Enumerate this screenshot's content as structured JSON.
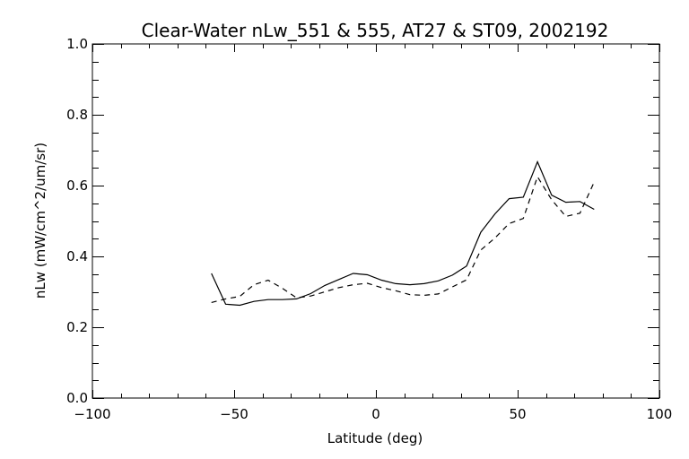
{
  "chart_data": {
    "type": "line",
    "title": "Clear-Water nLw_551 & 555, AT27 & ST09, 2002192",
    "xlabel": "Latitude (deg)",
    "ylabel": "nLw (mW/cm^2/um/sr)",
    "xlim": [
      -100,
      100
    ],
    "ylim": [
      0.0,
      1.0
    ],
    "x_major_ticks": [
      -100,
      -50,
      0,
      50,
      100
    ],
    "x_tick_labels": [
      "−100",
      "−50",
      "0",
      "50",
      "100"
    ],
    "x_minor_step": 10,
    "y_major_ticks": [
      0.0,
      0.2,
      0.4,
      0.6,
      0.8,
      1.0
    ],
    "y_tick_labels": [
      "0.0",
      "0.2",
      "0.4",
      "0.6",
      "0.8",
      "1.0"
    ],
    "y_minor_step": 0.05,
    "grid": false,
    "series": [
      {
        "style": "solid",
        "x": [
          -58,
          -53,
          -48,
          -43,
          -38,
          -33,
          -28,
          -23,
          -18,
          -13,
          -8,
          -3,
          2,
          7,
          12,
          17,
          22,
          27,
          32,
          37,
          42,
          47,
          52,
          57,
          62,
          67,
          72,
          77
        ],
        "y": [
          0.352,
          0.265,
          0.262,
          0.273,
          0.278,
          0.278,
          0.28,
          0.295,
          0.318,
          0.335,
          0.352,
          0.348,
          0.333,
          0.323,
          0.32,
          0.323,
          0.331,
          0.347,
          0.373,
          0.468,
          0.52,
          0.563,
          0.567,
          0.667,
          0.573,
          0.553,
          0.555,
          0.533
        ]
      },
      {
        "style": "dashed",
        "x": [
          -58,
          -53,
          -48,
          -43,
          -38,
          -33,
          -28,
          -23,
          -18,
          -13,
          -8,
          -3,
          2,
          7,
          12,
          17,
          22,
          27,
          32,
          37,
          42,
          47,
          52,
          57,
          62,
          67,
          72,
          77
        ],
        "y": [
          0.27,
          0.28,
          0.287,
          0.32,
          0.333,
          0.31,
          0.283,
          0.288,
          0.3,
          0.312,
          0.32,
          0.324,
          0.312,
          0.303,
          0.292,
          0.29,
          0.294,
          0.314,
          0.334,
          0.418,
          0.452,
          0.493,
          0.507,
          0.625,
          0.56,
          0.513,
          0.522,
          0.61
        ]
      }
    ]
  }
}
